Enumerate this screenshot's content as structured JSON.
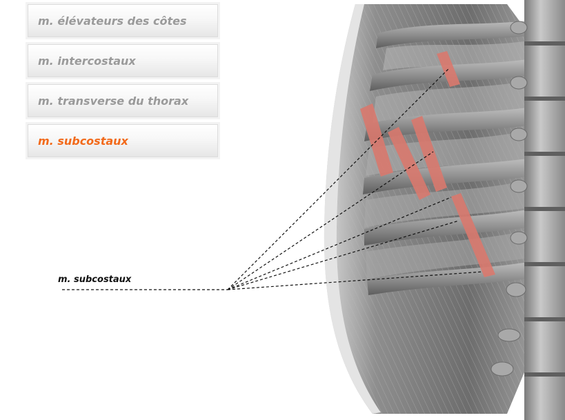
{
  "menu": {
    "items": [
      {
        "label": "m. élévateurs des côtes",
        "active": false
      },
      {
        "label": "m. intercostaux",
        "active": false
      },
      {
        "label": "m. transverse du thorax",
        "active": false
      },
      {
        "label": "m. subcostaux",
        "active": true
      }
    ]
  },
  "callout": {
    "label": "m. subcostaux"
  },
  "colors": {
    "active": "#f26a1b",
    "inactive": "#9a9a9a",
    "muscle_highlight": "#d9796e",
    "bone": "#9b9b9b"
  }
}
